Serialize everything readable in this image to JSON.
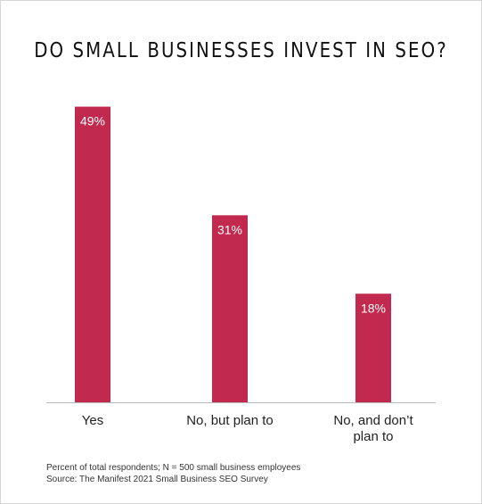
{
  "chart_data": {
    "type": "bar",
    "title": "DO SMALL BUSINESSES INVEST IN SEO?",
    "categories": [
      [
        "Yes"
      ],
      [
        "No, but plan to"
      ],
      [
        "No, and don’t",
        "plan to"
      ]
    ],
    "values": [
      49,
      31,
      18
    ],
    "value_labels": [
      "49%",
      "31%",
      "18%"
    ],
    "ylim": [
      0,
      55
    ],
    "grid": false,
    "legend": "none",
    "bar_color": "#c2294e",
    "value_label_color": "#ffffff",
    "axis_color": "#bbbbbb",
    "footnotes": [
      "Percent of total respondents; N = 500 small business employees",
      "Source: The Manifest 2021 Small Business SEO Survey"
    ]
  }
}
